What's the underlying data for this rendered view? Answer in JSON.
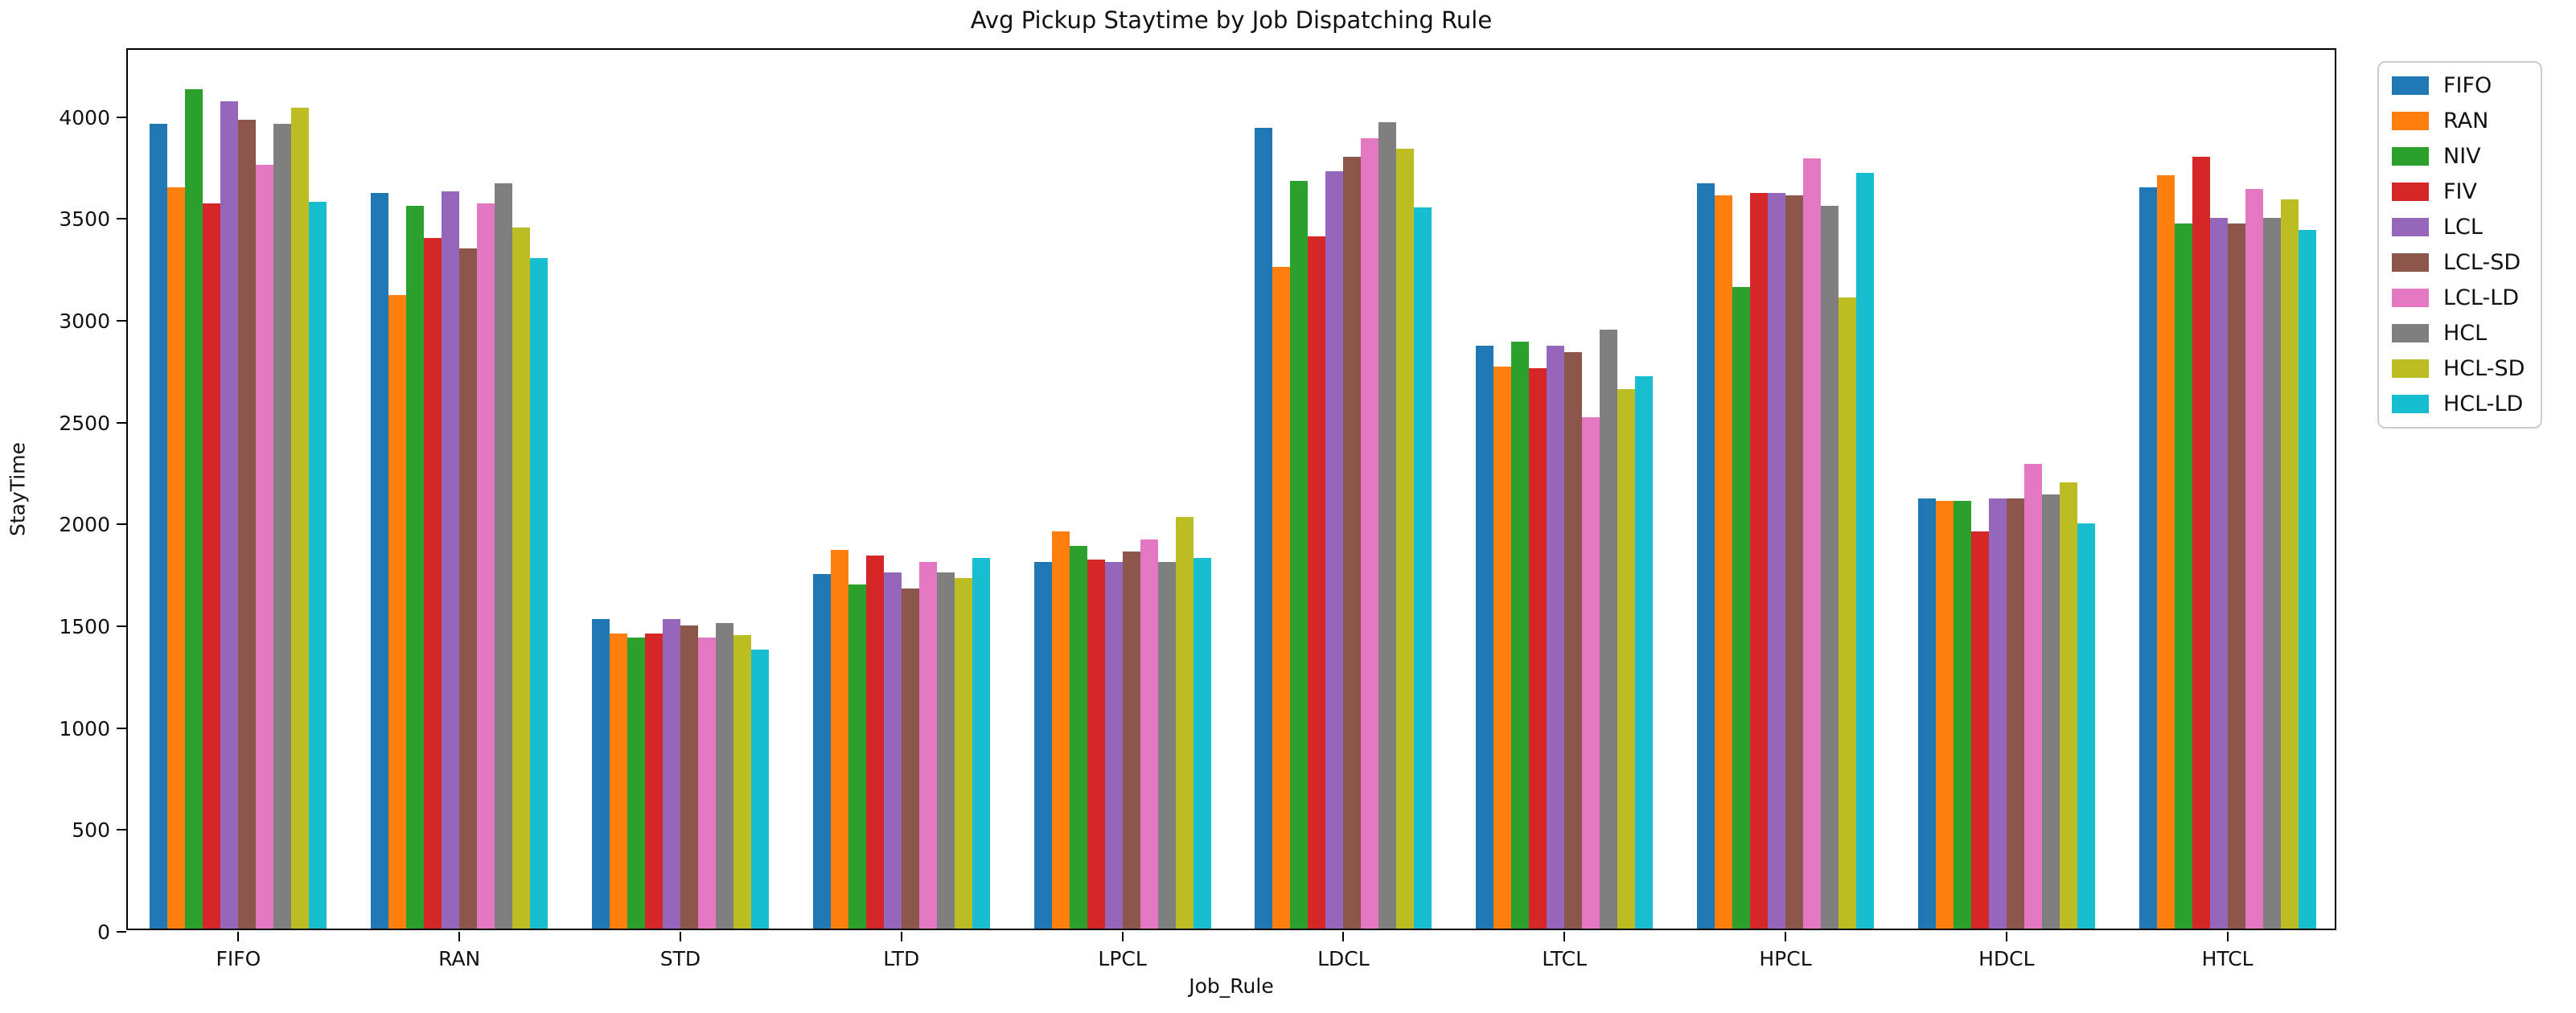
{
  "title": "Avg Pickup Staytime by Job Dispatching Rule",
  "chart_data": {
    "type": "bar",
    "title": "Avg Pickup Staytime by Job Dispatching Rule",
    "xlabel": "Job_Rule",
    "ylabel": "StayTime",
    "categories": [
      "FIFO",
      "RAN",
      "STD",
      "LTD",
      "LPCL",
      "LDCL",
      "LTCL",
      "HPCL",
      "HDCL",
      "HTCL"
    ],
    "series": [
      {
        "name": "FIFO",
        "color": "#1f77b4",
        "values": [
          3950,
          3610,
          1520,
          1740,
          1800,
          3930,
          2860,
          3660,
          2110,
          3640
        ]
      },
      {
        "name": "RAN",
        "color": "#ff7f0e",
        "values": [
          3640,
          3110,
          1450,
          1860,
          1950,
          3250,
          2760,
          3600,
          2100,
          3700
        ]
      },
      {
        "name": "NIV",
        "color": "#2ca02c",
        "values": [
          4120,
          3550,
          1430,
          1690,
          1880,
          3670,
          2880,
          3150,
          2100,
          3460
        ]
      },
      {
        "name": "FIV",
        "color": "#d62728",
        "values": [
          3560,
          3390,
          1450,
          1830,
          1810,
          3400,
          2750,
          3610,
          1950,
          3790
        ]
      },
      {
        "name": "LCL",
        "color": "#9467bd",
        "values": [
          4060,
          3620,
          1520,
          1750,
          1800,
          3720,
          2860,
          3610,
          2110,
          3490
        ]
      },
      {
        "name": "LCL-SD",
        "color": "#8c564b",
        "values": [
          3970,
          3340,
          1490,
          1670,
          1850,
          3790,
          2830,
          3600,
          2110,
          3460
        ]
      },
      {
        "name": "LCL-LD",
        "color": "#e377c2",
        "values": [
          3750,
          3560,
          1430,
          1800,
          1910,
          3880,
          2510,
          3780,
          2280,
          3630
        ]
      },
      {
        "name": "HCL",
        "color": "#7f7f7f",
        "values": [
          3950,
          3660,
          1500,
          1750,
          1800,
          3960,
          2940,
          3550,
          2130,
          3490
        ]
      },
      {
        "name": "HCL-SD",
        "color": "#bcbd22",
        "values": [
          4030,
          3440,
          1440,
          1720,
          2020,
          3830,
          2650,
          3100,
          2190,
          3580
        ]
      },
      {
        "name": "HCL-LD",
        "color": "#17becf",
        "values": [
          3570,
          3290,
          1370,
          1820,
          1820,
          3540,
          2710,
          3710,
          1990,
          3430
        ]
      }
    ],
    "ylim": [
      0,
      4330
    ],
    "yticks": [
      0,
      500,
      1000,
      1500,
      2000,
      2500,
      3000,
      3500,
      4000
    ],
    "grid": false,
    "legend": {
      "position": "upper-right-outside",
      "entries": [
        "FIFO",
        "RAN",
        "NIV",
        "FIV",
        "LCL",
        "LCL-SD",
        "LCL-LD",
        "HCL",
        "HCL-SD",
        "HCL-LD"
      ]
    }
  }
}
